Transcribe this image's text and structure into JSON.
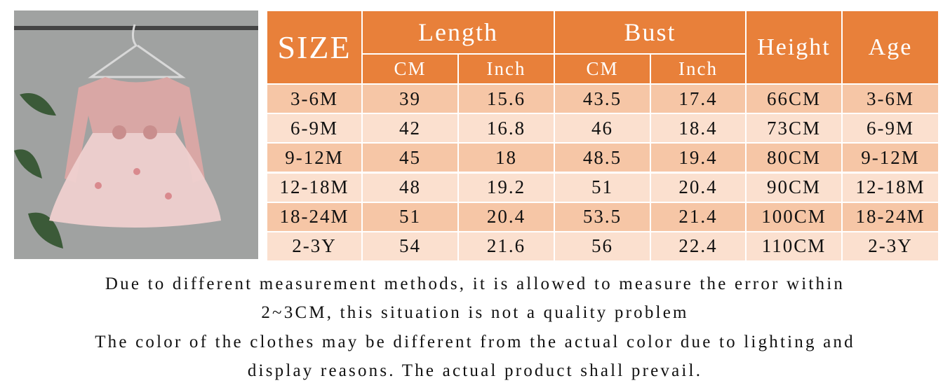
{
  "header": {
    "size": "SIZE",
    "length": "Length",
    "bust": "Bust",
    "height": "Height",
    "age": "Age",
    "sub": [
      "CM",
      "Inch",
      "CM",
      "Inch"
    ]
  },
  "table": {
    "rows": [
      [
        "3-6M",
        39,
        15.6,
        43.5,
        17.4,
        "66CM",
        "3-6M"
      ],
      [
        "6-9M",
        42,
        16.8,
        46,
        18.4,
        "73CM",
        "6-9M"
      ],
      [
        "9-12M",
        45,
        18,
        48.5,
        19.4,
        "80CM",
        "9-12M"
      ],
      [
        "12-18M",
        48,
        19.2,
        51,
        20.4,
        "90CM",
        "12-18M"
      ],
      [
        "18-24M",
        51,
        20.4,
        53.5,
        21.4,
        "100CM",
        "18-24M"
      ],
      [
        "2-3Y",
        54,
        21.6,
        56,
        22.4,
        "110CM",
        "2-3Y"
      ]
    ]
  },
  "notes": [
    "Due to different measurement methods, it is allowed to measure the error within",
    "2~3CM, this situation is not a quality problem",
    "The color of the clothes may be different from the actual color due to lighting and",
    "display reasons. The actual product shall prevail."
  ]
}
